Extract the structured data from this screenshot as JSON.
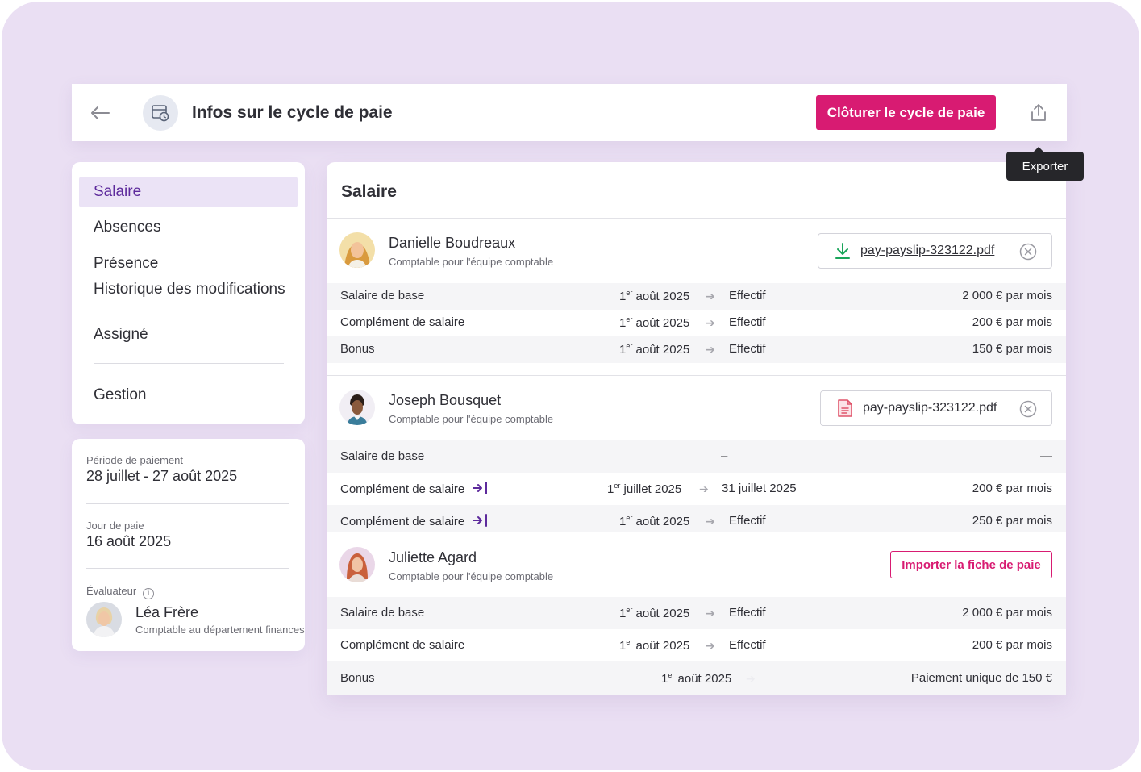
{
  "header": {
    "title": "Infos sur le cycle de paie",
    "close_cycle_label": "Clôturer le cycle de paie",
    "export_tooltip": "Exporter"
  },
  "nav": {
    "items": [
      {
        "label": "Salaire",
        "active": true
      },
      {
        "label": "Absences"
      },
      {
        "label": "Présence"
      },
      {
        "label": "Historique des modifications"
      },
      {
        "label": "Assigné"
      },
      {
        "label": "Gestion"
      }
    ]
  },
  "info": {
    "period_label": "Période de paiement",
    "period_value": "28 juillet - 27 août 2025",
    "payday_label": "Jour de paie",
    "payday_value": "16 août 2025",
    "evaluator_label": "Évaluateur",
    "evaluator_name": "Léa Frère",
    "evaluator_role": "Comptable au département finances"
  },
  "main": {
    "title": "Salaire",
    "people": [
      {
        "name": "Danielle Boudreaux",
        "role": "Comptable pour l'équipe comptable",
        "file": "pay-payslip-323122.pdf",
        "rows": [
          {
            "label": "Salaire de base",
            "start_day": "1",
            "start_sup": "er",
            "start_rest": " août 2025",
            "end": "Effectif",
            "amount": "2 000 € par mois"
          },
          {
            "label": "Complément de salaire",
            "start_day": "1",
            "start_sup": "er",
            "start_rest": " août 2025",
            "end": "Effectif",
            "amount": "200 € par mois"
          },
          {
            "label": "Bonus",
            "start_day": "1",
            "start_sup": "er",
            "start_rest": " août 2025",
            "end": "Effectif",
            "amount": "150 € par mois"
          }
        ]
      },
      {
        "name": "Joseph Bousquet",
        "role": "Comptable pour l'équipe comptable",
        "file": "pay-payslip-323122.pdf",
        "rows": [
          {
            "label": "Salaire de base",
            "dash": "–",
            "amount_dash": "—"
          },
          {
            "label": "Complément de salaire",
            "start_day": "1",
            "start_sup": "er",
            "start_rest": " juillet 2025",
            "end": "31 juillet 2025",
            "amount": "200 € par mois"
          },
          {
            "label": "Complément de salaire",
            "start_day": "1",
            "start_sup": "er",
            "start_rest": " août 2025",
            "end": "Effectif",
            "amount": "250 € par mois"
          }
        ]
      },
      {
        "name": "Juliette Agard",
        "role": "Comptable pour l'équipe comptable",
        "import_label": "Importer la fiche de paie",
        "rows": [
          {
            "label": "Salaire de base",
            "start_day": "1",
            "start_sup": "er",
            "start_rest": " août 2025",
            "end": "Effectif",
            "amount": "2 000 € par mois"
          },
          {
            "label": "Complément de salaire",
            "start_day": "1",
            "start_sup": "er",
            "start_rest": " août 2025",
            "end": "Effectif",
            "amount": "200 € par mois"
          },
          {
            "label": "Bonus",
            "start_day": "1",
            "start_sup": "er",
            "start_rest": " août 2025",
            "amount": "Paiement unique de 150 €"
          }
        ]
      }
    ]
  },
  "colors": {
    "background": "#eadff3",
    "accent": "#d81b72",
    "nav_active": "#5d2a9c",
    "download_icon": "#1aa55a",
    "pdf_icon": "#e0556b"
  },
  "icons": [
    "back-arrow-icon",
    "payroll-calendar-icon",
    "export-icon",
    "download-icon",
    "pdf-file-icon",
    "remove-circle-icon",
    "info-icon",
    "arrow-right-icon",
    "push-to-payroll-icon"
  ]
}
